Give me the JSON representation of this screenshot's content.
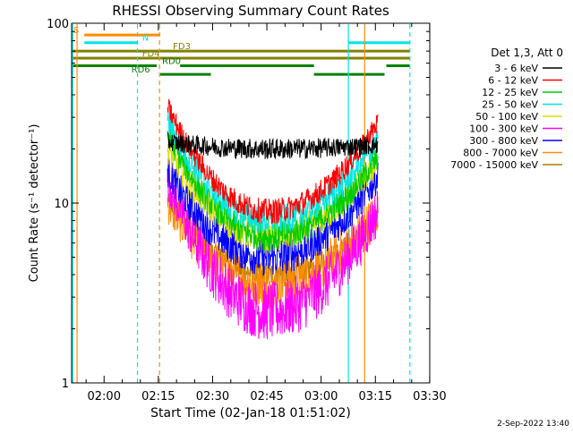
{
  "chart_data": {
    "type": "line",
    "title": "RHESSI Observing Summary Count Rates",
    "xlabel": "Start Time (02-Jan-18 01:51:02)",
    "ylabel": "Count Rate (s⁻¹ detector⁻¹)",
    "x_unit": "minutes since 01:51:02",
    "x_range": [
      0,
      99
    ],
    "y_scale": "log",
    "y_range": [
      1,
      100
    ],
    "x_ticks": [
      {
        "value": 8.97,
        "label": "02:00"
      },
      {
        "value": 23.97,
        "label": "02:15"
      },
      {
        "value": 38.97,
        "label": "02:30"
      },
      {
        "value": 53.97,
        "label": "02:45"
      },
      {
        "value": 68.97,
        "label": "03:00"
      },
      {
        "value": 83.97,
        "label": "03:15"
      },
      {
        "value": 98.97,
        "label": "03:30"
      }
    ],
    "y_ticks": [
      {
        "value": 1,
        "label": "1"
      },
      {
        "value": 10,
        "label": "10"
      },
      {
        "value": 100,
        "label": "100"
      }
    ],
    "legend_title": "Det 1,3, Att 0",
    "legend_position": "right",
    "grid": false,
    "data_segment": {
      "x_start": 26.5,
      "x_end": 84.5
    },
    "series": [
      {
        "name": "3 - 6 keV",
        "color": "#000000",
        "start": 22,
        "mid": 20,
        "end": 21,
        "noise": 0.05
      },
      {
        "name": "6 - 12 keV",
        "color": "#ff0000",
        "start": 34,
        "mid": 9,
        "end": 28,
        "noise": 0.06
      },
      {
        "name": "12 - 25 keV",
        "color": "#00cc00",
        "start": 24,
        "mid": 6.5,
        "end": 18,
        "noise": 0.07
      },
      {
        "name": "25 - 50 keV",
        "color": "#00e5e5",
        "start": 28,
        "mid": 8,
        "end": 22,
        "noise": 0.07
      },
      {
        "name": "50 - 100 keV",
        "color": "#dddd00",
        "start": 20,
        "mid": 6.5,
        "end": 17,
        "noise": 0.08
      },
      {
        "name": "100 - 300 keV",
        "color": "#ff00ff",
        "start": 14,
        "mid": 2.5,
        "end": 9,
        "noise": 0.14
      },
      {
        "name": "300 - 800 keV",
        "color": "#0000ff",
        "start": 15,
        "mid": 5,
        "end": 14,
        "noise": 0.09
      },
      {
        "name": "800 - 7000 keV",
        "color": "#ff8c00",
        "start": 10,
        "mid": 3.6,
        "end": 9,
        "noise": 0.12
      },
      {
        "name": "7000 - 15000 keV",
        "color": "#b07a00",
        "start": 10,
        "mid": 4,
        "end": 8,
        "noise": 0.06
      }
    ],
    "flag_lines": [
      {
        "label": "S",
        "color": "#ff8c00",
        "y": 86,
        "x_start": 3.5,
        "x_end": 24.5,
        "label_x": 0.5
      },
      {
        "label": "N",
        "color": "#00e5e5",
        "y": 78,
        "x_start": 3.5,
        "x_end": 18.2,
        "label_x": 19.5
      },
      {
        "label": "",
        "color": "#00e5e5",
        "y": 78,
        "x_start": 76.5,
        "x_end": 93.5,
        "label_x": null
      },
      {
        "label": "FD3",
        "color": "#808000",
        "y": 70,
        "x_start": 0,
        "x_end": 93.5,
        "label_x": 28
      },
      {
        "label": "FD4",
        "color": "#808000",
        "y": 64,
        "x_start": 0,
        "x_end": 93.5,
        "label_x": 19.5
      },
      {
        "label": "RD0",
        "color": "#008000",
        "y": 58,
        "x_start": 0,
        "x_end": 23.5,
        "label_x": 25
      },
      {
        "label": "",
        "color": "#008000",
        "y": 58,
        "x_start": 30,
        "x_end": 67,
        "label_x": null
      },
      {
        "label": "",
        "color": "#008000",
        "y": 58,
        "x_start": 87,
        "x_end": 93.5,
        "label_x": null
      },
      {
        "label": "RD6",
        "color": "#008000",
        "y": 52,
        "x_start": 24.5,
        "x_end": 38.5,
        "label_x": 16.5
      },
      {
        "label": "",
        "color": "#008000",
        "y": 52,
        "x_start": 67,
        "x_end": 86.5,
        "label_x": null
      }
    ],
    "vertical_lines": [
      {
        "x": 0.3,
        "color": "#00e5e5",
        "style": "solid"
      },
      {
        "x": 1.5,
        "color": "#ff8c00",
        "style": "solid"
      },
      {
        "x": 18.2,
        "color": "#00e5e5",
        "style": "dashed"
      },
      {
        "x": 24.3,
        "color": "#ff8c00",
        "style": "dashed"
      },
      {
        "x": 76.5,
        "color": "#00e5e5",
        "style": "solid"
      },
      {
        "x": 81,
        "color": "#ff8c00",
        "style": "solid"
      },
      {
        "x": 93.5,
        "color": "#00e5e5",
        "style": "dashed"
      }
    ],
    "footer": "2-Sep-2022 13:40"
  }
}
